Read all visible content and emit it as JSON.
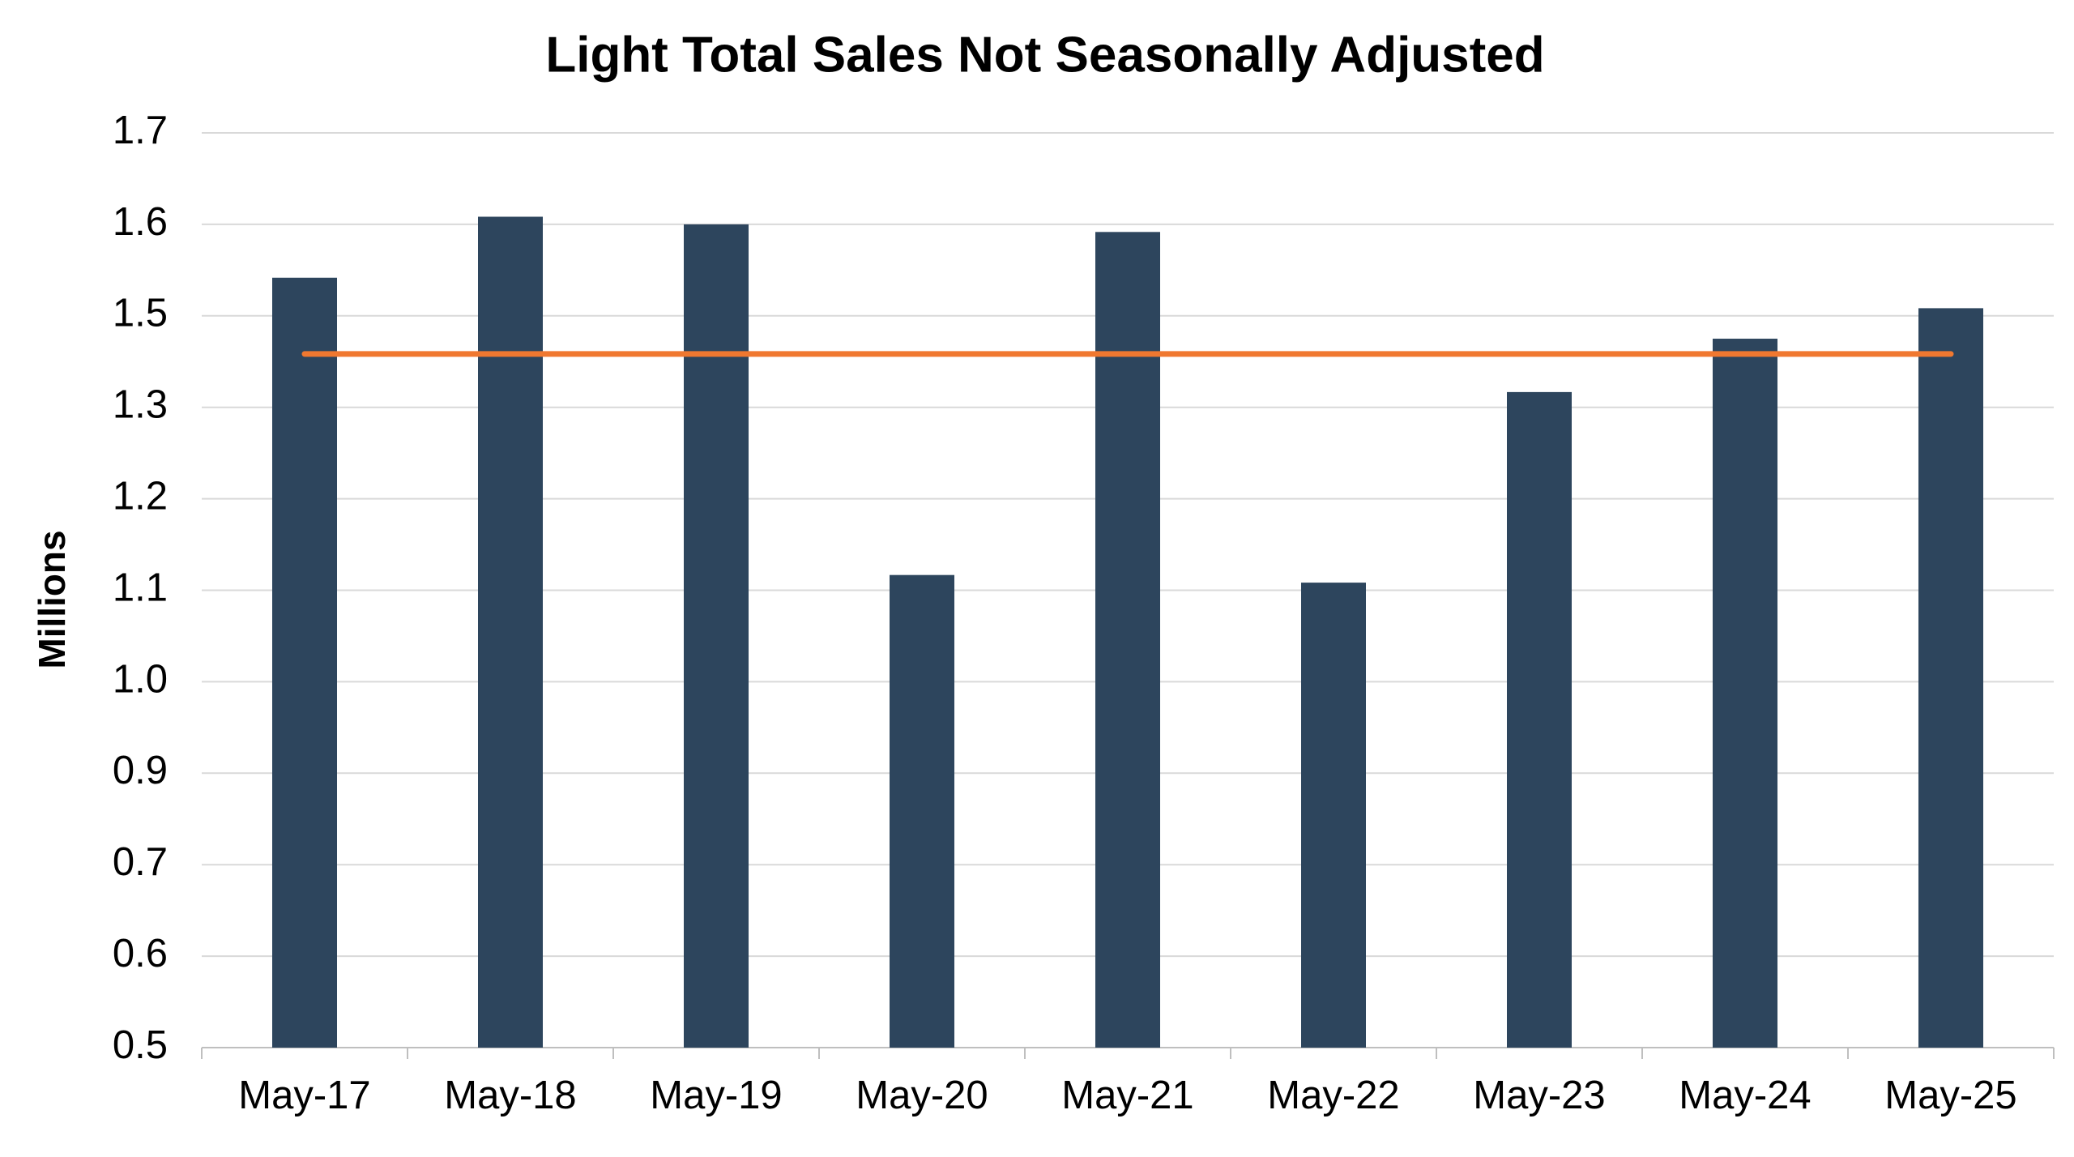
{
  "chart_data": {
    "type": "bar",
    "title": "Light Total Sales Not Seasonally Adjusted",
    "y_label": "Millions",
    "categories": [
      "May-17",
      "May-18",
      "May-19",
      "May-20",
      "May-21",
      "May-22",
      "May-23",
      "May-24",
      "May-25"
    ],
    "values": [
      1.51,
      1.59,
      1.58,
      1.12,
      1.57,
      1.11,
      1.36,
      1.43,
      1.47
    ],
    "color": "#2d455d",
    "line": {
      "value": 1.41,
      "color": "#f07830"
    },
    "ylim": [
      0.5,
      1.7
    ],
    "yticks": [
      0.5,
      {
        "value": 0.62,
        "label": "0.6"
      },
      {
        "value": 0.74,
        "label": "0.7"
      },
      {
        "value": 0.86,
        "label": "0.9"
      },
      {
        "value": 0.98,
        "label": "1.0"
      },
      {
        "value": 1.1,
        "label": "1.1"
      },
      {
        "value": 1.22,
        "label": "1.2"
      },
      {
        "value": 1.34,
        "label": "1.3"
      },
      {
        "value": 1.46,
        "label": "1.5"
      },
      {
        "value": 1.58,
        "label": "1.6"
      },
      1.7
    ],
    "grid": true
  }
}
